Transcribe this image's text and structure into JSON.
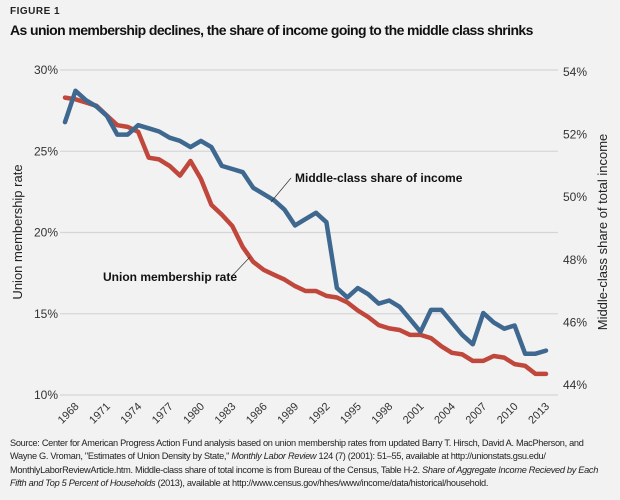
{
  "figure_label": "FIGURE 1",
  "title": "As union membership declines, the share of income going to the middle class shrinks",
  "chart_data": {
    "type": "line",
    "title": "As union membership declines, the share of income going to the middle class shrinks",
    "x": [
      1967,
      1968,
      1969,
      1970,
      1971,
      1972,
      1973,
      1974,
      1975,
      1976,
      1977,
      1978,
      1979,
      1980,
      1981,
      1982,
      1983,
      1984,
      1985,
      1986,
      1987,
      1988,
      1989,
      1990,
      1991,
      1992,
      1993,
      1994,
      1995,
      1996,
      1997,
      1998,
      1999,
      2000,
      2001,
      2002,
      2003,
      2004,
      2005,
      2006,
      2007,
      2008,
      2009,
      2010,
      2011,
      2012,
      2013
    ],
    "xticks": [
      "1968",
      "1971",
      "1974",
      "1977",
      "1980",
      "1983",
      "1986",
      "1989",
      "1992",
      "1995",
      "1998",
      "2001",
      "2004",
      "2007",
      "2010",
      "2013"
    ],
    "y_left": {
      "label": "Union membership rate",
      "range": [
        10,
        30
      ],
      "ticks": [
        "10%",
        "15%",
        "20%",
        "25%",
        "30%"
      ]
    },
    "y_right": {
      "label": "Middle-class share of total income",
      "range": [
        44,
        54
      ],
      "ticks": [
        "44%",
        "46%",
        "48%",
        "50%",
        "52%",
        "54%"
      ]
    },
    "grid": true,
    "series": [
      {
        "name": "Union membership rate",
        "axis": "left",
        "color": "#c0473b",
        "values": [
          28.3,
          28.2,
          28.0,
          27.8,
          27.2,
          26.6,
          26.5,
          26.2,
          24.6,
          24.5,
          24.1,
          23.5,
          24.4,
          23.3,
          21.7,
          21.1,
          20.4,
          19.1,
          18.2,
          17.7,
          17.4,
          17.1,
          16.7,
          16.4,
          16.4,
          16.1,
          16.0,
          15.7,
          15.2,
          14.8,
          14.3,
          14.1,
          14.0,
          13.7,
          13.7,
          13.5,
          13.0,
          12.6,
          12.5,
          12.1,
          12.1,
          12.4,
          12.3,
          11.9,
          11.8,
          11.3,
          11.3
        ]
      },
      {
        "name": "Middle-class share of income",
        "axis": "right",
        "color": "#3e6890",
        "values": [
          52.4,
          53.4,
          53.1,
          52.9,
          52.6,
          52.0,
          52.0,
          52.3,
          52.2,
          52.1,
          51.9,
          51.8,
          51.6,
          51.8,
          51.6,
          51.0,
          50.9,
          50.8,
          50.3,
          50.1,
          49.9,
          49.6,
          49.1,
          49.3,
          49.5,
          49.2,
          47.1,
          46.8,
          47.1,
          46.9,
          46.6,
          46.7,
          46.5,
          46.1,
          45.7,
          46.4,
          46.4,
          46.0,
          45.6,
          45.3,
          46.3,
          46.0,
          45.8,
          45.9,
          45.0,
          45.0,
          45.1
        ]
      }
    ],
    "annotations": [
      "Middle-class share of income",
      "Union membership rate"
    ]
  },
  "source": {
    "p1": "Source: Center for American Progress Action Fund analysis based on union membership rates from updated Barry T. Hirsch, David A. MacPherson, and Wayne G. Vroman, \"Estimates of Union Density by State,\" ",
    "i1": "Monthly Labor Review",
    "p2": " 124 (7) (2001): 51–55, available at http://unionstats.gsu.edu/ MonthlyLaborReviewArticle.htm. Middle-class share of total income is from Bureau of the Census, Table H-2. ",
    "i2": "Share of Aggregate Income Recieved by Each Fifth and Top 5 Percent of Households",
    "p3": " (2013), available at http://www.census.gov/hhes/www/income/data/historical/household."
  }
}
